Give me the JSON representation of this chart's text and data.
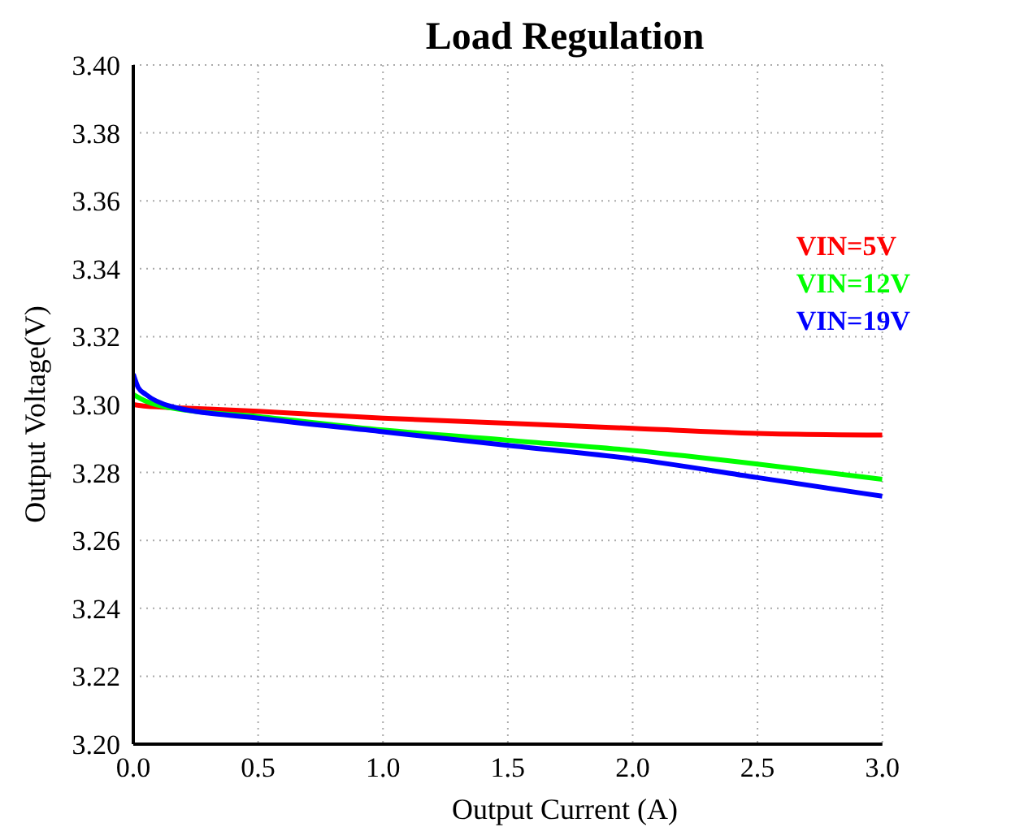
{
  "chart_data": {
    "type": "line",
    "title": "Load Regulation",
    "xlabel": "Output Current (A)",
    "ylabel": "Output Voltage(V)",
    "xlim": [
      0,
      3
    ],
    "xticks": [
      {
        "value": 0,
        "label": "0.0"
      },
      {
        "value": 0.5,
        "label": "0.5"
      },
      {
        "value": 1,
        "label": "1.0"
      },
      {
        "value": 1.5,
        "label": "1.5"
      },
      {
        "value": 2,
        "label": "2.0"
      },
      {
        "value": 2.5,
        "label": "2.5"
      },
      {
        "value": 3,
        "label": "3.0"
      }
    ],
    "ylim": [
      3.2,
      3.4
    ],
    "yticks": [
      {
        "value": 3.2,
        "label": "3.20"
      },
      {
        "value": 3.22,
        "label": "3.22"
      },
      {
        "value": 3.24,
        "label": "3.24"
      },
      {
        "value": 3.26,
        "label": "3.26"
      },
      {
        "value": 3.28,
        "label": "3.28"
      },
      {
        "value": 3.3,
        "label": "3.30"
      },
      {
        "value": 3.32,
        "label": "3.32"
      },
      {
        "value": 3.34,
        "label": "3.34"
      },
      {
        "value": 3.36,
        "label": "3.36"
      },
      {
        "value": 3.38,
        "label": "3.38"
      },
      {
        "value": 3.4,
        "label": "3.40"
      }
    ],
    "grid": true,
    "legend": "top right",
    "marker": "none",
    "line_style": "solid",
    "series": [
      {
        "name": "VIN=5V",
        "color": "#ff0000",
        "x": [
          0,
          0.05,
          0.2,
          0.5,
          1,
          1.5,
          2,
          2.5,
          3
        ],
        "values": [
          3.3,
          3.2995,
          3.299,
          3.298,
          3.296,
          3.2945,
          3.293,
          3.2915,
          3.291
        ]
      },
      {
        "name": "VIN=12V",
        "color": "#00ff00",
        "x": [
          0,
          0.05,
          0.15,
          0.5,
          1,
          1.5,
          2,
          2.5,
          3
        ],
        "values": [
          3.303,
          3.301,
          3.299,
          3.2965,
          3.2925,
          3.2895,
          3.2865,
          3.2825,
          3.278
        ]
      },
      {
        "name": "VIN=19V",
        "color": "#0000ff",
        "x": [
          0,
          0.02,
          0.05,
          0.15,
          0.5,
          1,
          1.5,
          2,
          2.5,
          3
        ],
        "values": [
          3.309,
          3.305,
          3.303,
          3.2995,
          3.296,
          3.292,
          3.288,
          3.284,
          3.2785,
          3.273
        ]
      }
    ]
  }
}
